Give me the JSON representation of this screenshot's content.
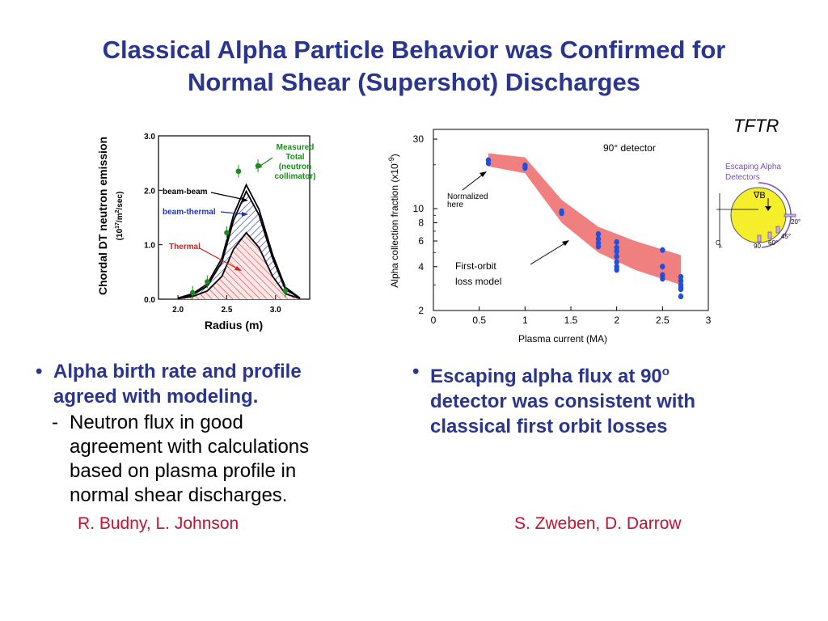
{
  "slide": {
    "title_line1": "Classical Alpha Particle Behavior was Confirmed for",
    "title_line2": "Normal Shear (Supershot) Discharges",
    "tftr_label": "TFTR",
    "colors": {
      "title": "#2a3590",
      "author": "#c8102e",
      "measured": "#1f8a1f",
      "beam_thermal": "#2233aa",
      "thermal": "#cc2020",
      "band": "#f08080",
      "points": "#1f4fe0",
      "diagram_purple": "#7a4fb0"
    },
    "left_bullet": {
      "line1": "Alpha birth rate and profile",
      "line2": "agreed with modeling.",
      "sub_line1": "Neutron flux in good",
      "sub_line2": "agreement with calculations",
      "sub_line3": "based on plasma profile in",
      "sub_line4": "normal shear discharges."
    },
    "right_bullet": {
      "line1_pre": "Escaping alpha flux at 90",
      "line1_sup": "o",
      "line2": "detector was consistent with",
      "line3": "classical first orbit losses"
    },
    "left_authors": "R. Budny, L. Johnson",
    "right_authors": "S. Zweben, D. Darrow",
    "diagram": {
      "title_line1": "Escaping Alpha",
      "title_line2": "Detectors",
      "grad_b": "∇B",
      "angle_20": "20°",
      "angle_45": "45°",
      "angle_60": "60°",
      "angle_90": "90",
      "cl": "C",
      "cl_sub": "L"
    }
  },
  "chart_data": [
    {
      "type": "line",
      "title": "",
      "ylabel_line1": "Chordal DT neutron emission",
      "ylabel_line2": "(10^17/m2/sec)",
      "ylabel_units_pre": "(10",
      "ylabel_units_sup": "17",
      "ylabel_units_mid": "/m",
      "ylabel_units_sup2": "2",
      "ylabel_units_post": "/sec)",
      "xlabel": "Radius (m)",
      "xlim": [
        1.8,
        3.35
      ],
      "ylim": [
        0.0,
        3.0
      ],
      "x_ticks": [
        "2.0",
        "2.5",
        "3.0"
      ],
      "x_tick_values": [
        2.0,
        2.5,
        3.0
      ],
      "y_ticks": [
        "0.0",
        "1.0",
        "2.0",
        "3.0"
      ],
      "y_tick_values": [
        0.0,
        1.0,
        2.0,
        3.0
      ],
      "annotations": {
        "measured_line1": "Measured",
        "measured_line2": "Total",
        "measured_line3": "(neutron",
        "measured_line4": "collimator)",
        "beam_beam": "beam-beam",
        "beam_thermal": "beam-thermal",
        "thermal": "Thermal"
      },
      "series": [
        {
          "x": [
            2.0,
            2.15,
            2.3,
            2.45,
            2.57,
            2.7,
            2.83,
            2.97,
            3.1,
            3.25
          ],
          "values": [
            0.02,
            0.1,
            0.28,
            0.75,
            1.55,
            2.1,
            1.65,
            0.82,
            0.22,
            0.02
          ]
        },
        {
          "x": [
            2.0,
            2.15,
            2.3,
            2.45,
            2.57,
            2.7,
            2.83,
            2.97,
            3.1,
            3.25
          ],
          "values": [
            0.02,
            0.08,
            0.24,
            0.68,
            1.45,
            1.98,
            1.55,
            0.75,
            0.18,
            0.02
          ]
        },
        {
          "x": [
            2.0,
            2.15,
            2.3,
            2.45,
            2.57,
            2.7,
            2.83,
            2.97,
            3.1,
            3.25
          ],
          "values": [
            0.01,
            0.05,
            0.15,
            0.42,
            0.92,
            1.22,
            0.95,
            0.42,
            0.1,
            0.01
          ]
        }
      ],
      "measured_points": {
        "x": [
          2.15,
          2.3,
          2.5,
          2.62,
          2.82,
          3.1
        ],
        "values": [
          0.12,
          0.32,
          1.22,
          2.35,
          2.45,
          0.15
        ]
      }
    },
    {
      "type": "scatter",
      "title": "",
      "ylabel": "Alpha collection fraction (x10",
      "ylabel_sup": "-9",
      "ylabel_close": ")",
      "xlabel": "Plasma current (MA)",
      "xlim": [
        0,
        3
      ],
      "ylim": [
        2,
        35
      ],
      "y_scale": "log",
      "x_ticks": [
        "0",
        "0.5",
        "1",
        "1.5",
        "2",
        "2.5",
        "3"
      ],
      "x_tick_values": [
        0,
        0.5,
        1,
        1.5,
        2,
        2.5,
        3
      ],
      "y_ticks": [
        "2",
        "4",
        "6",
        "8",
        "10",
        "30"
      ],
      "y_tick_values": [
        2,
        4,
        6,
        8,
        10,
        30
      ],
      "annotations": {
        "detector": "90° detector",
        "normalized_line1": "Normalized",
        "normalized_line2": "here",
        "model_line1": "First-orbit",
        "model_line2": "loss model"
      },
      "model_band": {
        "x": [
          0.6,
          1.0,
          1.4,
          1.8,
          2.2,
          2.7
        ],
        "upper": [
          24,
          22.5,
          11.5,
          7.5,
          6,
          4.8
        ],
        "lower": [
          19.5,
          17.5,
          8,
          5,
          3.8,
          3.0
        ]
      },
      "points": {
        "x": [
          0.6,
          0.6,
          1.0,
          1.0,
          1.4,
          1.4,
          1.8,
          1.8,
          1.8,
          1.8,
          2.0,
          2.0,
          2.0,
          2.0,
          2.0,
          2.0,
          2.0,
          2.5,
          2.5,
          2.5,
          2.5,
          2.7,
          2.7,
          2.7,
          2.7,
          2.7,
          2.7
        ],
        "values": [
          21.5,
          20.5,
          19.8,
          19.0,
          9.6,
          9.3,
          6.7,
          6.2,
          5.8,
          5.5,
          5.9,
          5.4,
          5.1,
          4.7,
          4.3,
          4.0,
          3.8,
          5.2,
          4.0,
          3.5,
          3.3,
          3.4,
          3.2,
          3.0,
          2.9,
          2.8,
          2.5
        ]
      }
    }
  ]
}
